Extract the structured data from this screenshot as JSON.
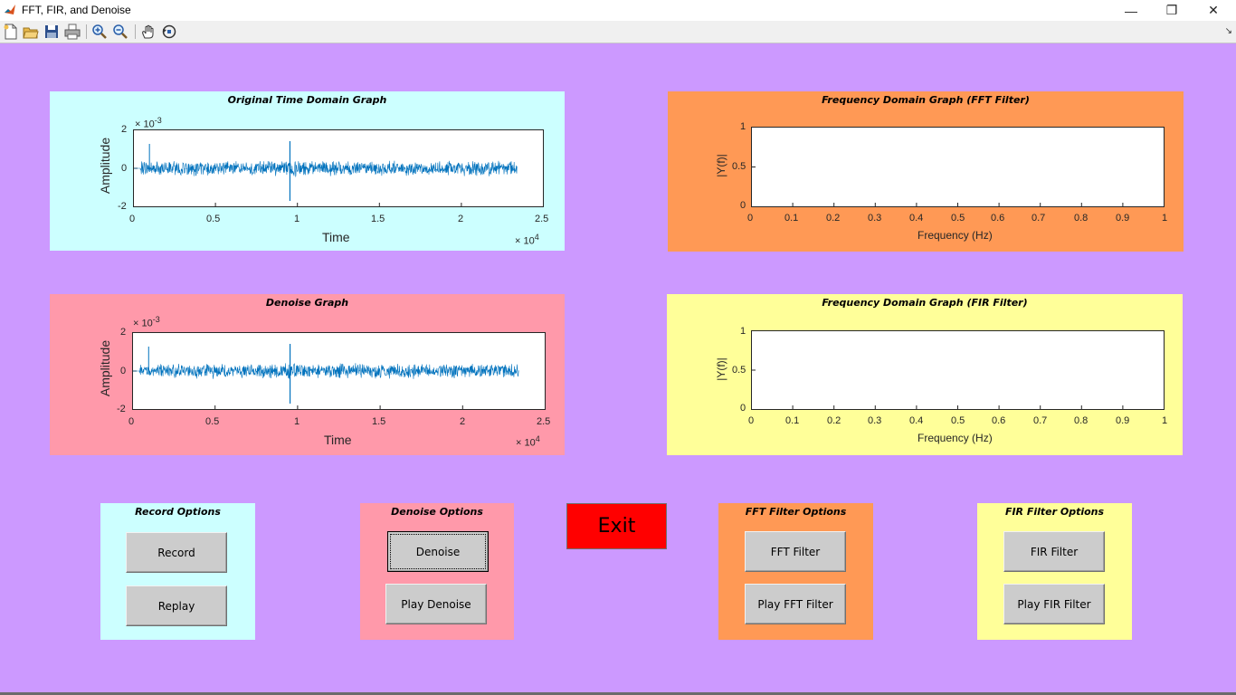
{
  "window": {
    "title": "FFT, FIR, and Denoise",
    "minimize": "—",
    "restore": "❐",
    "close": "✕"
  },
  "toolbar": {
    "items": [
      "new-figure",
      "open-file",
      "save",
      "print",
      "zoom-in",
      "zoom-out",
      "pan",
      "rotate-3d"
    ]
  },
  "colors": {
    "background": "#cc99ff",
    "original_panel": "#ccffff",
    "denoise_panel": "#ff99aa",
    "fft_panel": "#ff9955",
    "fir_panel": "#ffff99",
    "signal": "#0072bd",
    "exit": "#ff0000"
  },
  "panels": {
    "original": {
      "title": "Original Time Domain Graph",
      "ylabel": "Amplitude",
      "xlabel": "Time",
      "yexp": "× 10",
      "yexp_sup": "-3",
      "xexp": "× 10",
      "xexp_sup": "4",
      "yticks": [
        "2",
        "0",
        "-2"
      ],
      "xticks": [
        "0",
        "0.5",
        "1",
        "1.5",
        "2",
        "2.5"
      ]
    },
    "denoise": {
      "title": "Denoise Graph",
      "ylabel": "Amplitude",
      "xlabel": "Time",
      "yexp": "× 10",
      "yexp_sup": "-3",
      "xexp": "× 10",
      "xexp_sup": "4",
      "yticks": [
        "2",
        "0",
        "-2"
      ],
      "xticks": [
        "0",
        "0.5",
        "1",
        "1.5",
        "2",
        "2.5"
      ]
    },
    "fft": {
      "title": "Frequency Domain Graph (FFT Filter)",
      "ylabel": "|Y(f)|",
      "xlabel": "Frequency (Hz)",
      "yticks": [
        "1",
        "0.5",
        "0"
      ],
      "xticks": [
        "0",
        "0.1",
        "0.2",
        "0.3",
        "0.4",
        "0.5",
        "0.6",
        "0.7",
        "0.8",
        "0.9",
        "1"
      ]
    },
    "fir": {
      "title": "Frequency Domain Graph (FIR Filter)",
      "ylabel": "|Y(f)|",
      "xlabel": "Frequency (Hz)",
      "yticks": [
        "1",
        "0.5",
        "0"
      ],
      "xticks": [
        "0",
        "0.1",
        "0.2",
        "0.3",
        "0.4",
        "0.5",
        "0.6",
        "0.7",
        "0.8",
        "0.9",
        "1"
      ]
    }
  },
  "options": {
    "record": {
      "title": "Record Options",
      "btn1": "Record",
      "btn2": "Replay"
    },
    "denoise": {
      "title": "Denoise Options",
      "btn1": "Denoise",
      "btn2": "Play Denoise"
    },
    "fft": {
      "title": "FFT Filter Options",
      "btn1": "FFT Filter",
      "btn2": "Play FFT Filter"
    },
    "fir": {
      "title": "FIR Filter Options",
      "btn1": "FIR Filter",
      "btn2": "Play FIR Filter"
    }
  },
  "exit_label": "Exit"
}
